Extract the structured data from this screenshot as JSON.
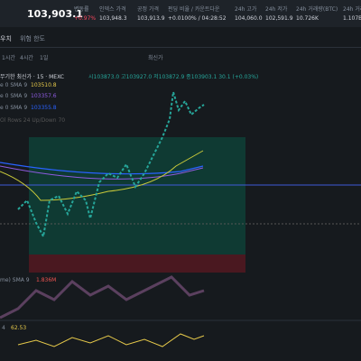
{
  "header": {
    "price": "103,903.1",
    "stats": [
      {
        "label": "변동률",
        "value": "+0.97%"
      },
      {
        "label": "인덱스 가격",
        "value": "103,948.3"
      },
      {
        "label": "공정 가격",
        "value": "103,913.9"
      },
      {
        "label": "펀딩 비율 / 카운트다운",
        "value": "+0.0100% / 04:28:52"
      },
      {
        "label": "24h 고가",
        "value": "104,060.0"
      },
      {
        "label": "24h 저가",
        "value": "102,591.9"
      },
      {
        "label": "24h 거래량(BTC)",
        "value": "10.726K"
      },
      {
        "label": "24h 거래",
        "value": "1.107B"
      }
    ]
  },
  "tabs": [
    "우치",
    "위험 한도"
  ],
  "toolbar": [
    "1시간",
    "4시간",
    "1일",
    "최신가"
  ],
  "legend": {
    "title": "무기한 최신가 · 15 · MEXC",
    "ohlc": "시103873.0 고103927.0 저103872.9 종103903.1 30.1 (+0.03%)",
    "sma": [
      {
        "label": "e 0 SMA 9",
        "value": "103510.8"
      },
      {
        "label": "e 0 SMA 9",
        "value": "103357.6"
      },
      {
        "label": "e 0 SMA 9",
        "value": "103355.8"
      }
    ],
    "vrvp": "Ol Rows 24 Up/Down 70"
  },
  "volume": {
    "label": "me) SMA 9",
    "value": "1.836M"
  },
  "rsi": {
    "label": "4",
    "value": "62.53"
  }
}
